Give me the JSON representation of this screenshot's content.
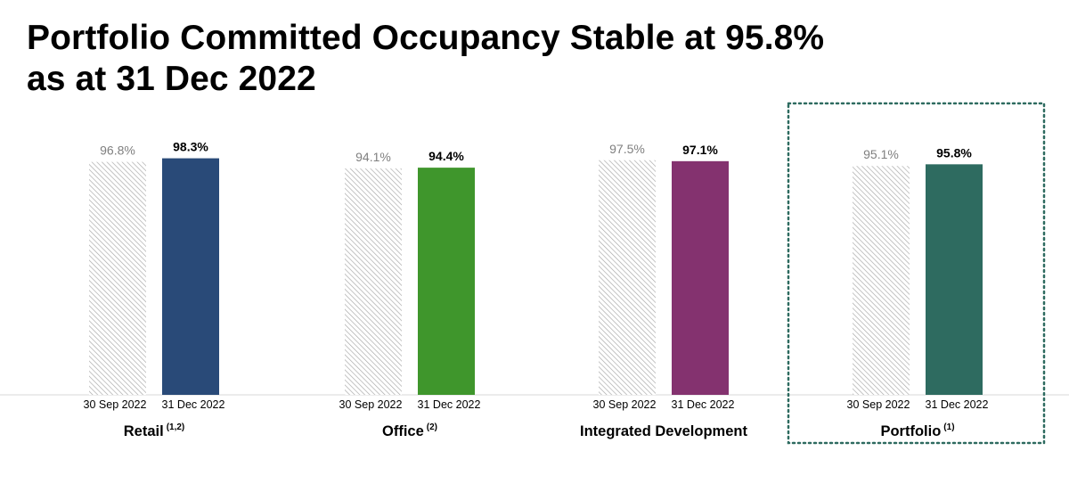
{
  "page": {
    "title_line1": "Portfolio Committed Occupancy Stable at 95.8%",
    "title_line2": "as at 31 Dec 2022"
  },
  "chart_data": {
    "type": "bar",
    "series": [
      {
        "name": "30 Sep 2022",
        "style": "hatched-grey"
      },
      {
        "name": "31 Dec 2022",
        "style": "solid"
      }
    ],
    "y_unit": "%",
    "grid": false,
    "legend": "none",
    "groups": [
      {
        "name": "Retail",
        "note": "(1,2)",
        "prev": 96.8,
        "curr": 98.3,
        "prev_label": "96.8%",
        "curr_label": "98.3%",
        "color": "#294a78",
        "highlight": false
      },
      {
        "name": "Office",
        "note": "(2)",
        "prev": 94.1,
        "curr": 94.4,
        "prev_label": "94.1%",
        "curr_label": "94.4%",
        "color": "#3f962c",
        "highlight": false
      },
      {
        "name": "Integrated Development",
        "note": "",
        "prev": 97.5,
        "curr": 97.1,
        "prev_label": "97.5%",
        "curr_label": "97.1%",
        "color": "#84326f",
        "highlight": false
      },
      {
        "name": "Portfolio",
        "note": "(1)",
        "prev": 95.1,
        "curr": 95.8,
        "prev_label": "95.1%",
        "curr_label": "95.8%",
        "color": "#2e6b60",
        "highlight": true
      }
    ]
  },
  "colors": {
    "hatch_stroke": "#a6a6a6",
    "hatch_bg": "#ffffff",
    "highlight_border": "#2e6b60",
    "axis": "#d9d9d9"
  }
}
